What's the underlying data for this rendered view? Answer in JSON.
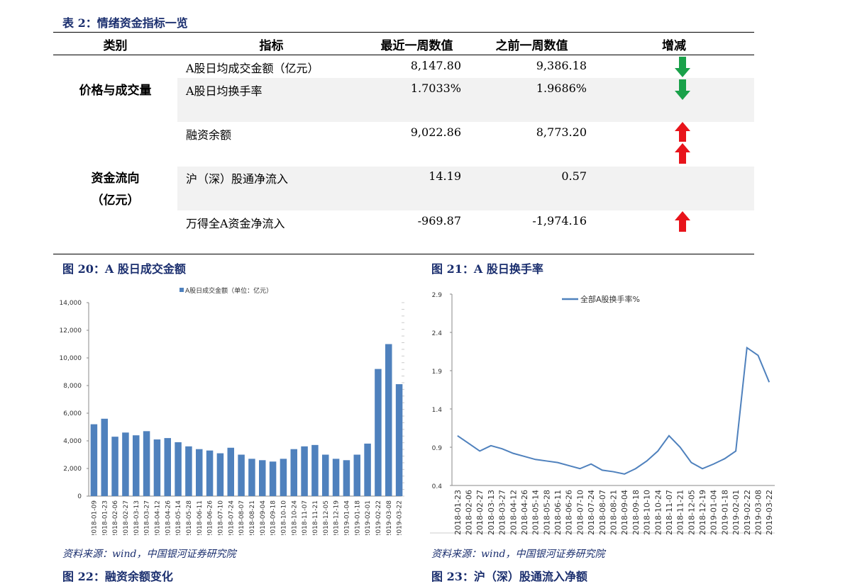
{
  "table": {
    "caption": "表 2：情绪资金指标一览",
    "headers": [
      "类别",
      "指标",
      "最近一周数值",
      "之前一周数值",
      "增减"
    ],
    "groups": [
      {
        "label": "价格与成交量",
        "sub": ""
      },
      {
        "label": "资金流向",
        "sub": "（亿元）"
      }
    ],
    "rows": [
      {
        "indicator": "A股日均成交金额（亿元）",
        "recent": "8,147.80",
        "previous": "9,386.18",
        "change": "down"
      },
      {
        "indicator": "A股日均换手率",
        "recent": "1.7033%",
        "previous": "1.9686%",
        "change": "down"
      },
      {
        "indicator": "融资余额",
        "recent": "9,022.86",
        "previous": "8,773.20",
        "change": "up"
      },
      {
        "indicator": "沪（深）股通净流入",
        "recent": "14.19",
        "previous": "0.57",
        "change": "up"
      },
      {
        "indicator": "万得全A资金净流入",
        "recent": "-969.87",
        "previous": "-1,974.16",
        "change": "up"
      }
    ],
    "colors": {
      "down": "#1aa14a",
      "up": "#e8141b"
    }
  },
  "figures": {
    "fig20_caption": "图 20：A 股日成交金额",
    "fig21_caption": "图 21：A 股日换手率",
    "fig22_caption": "图 22：融资余额变化",
    "fig23_caption": "图 23：沪（深）股通流入净额",
    "source_left": "资料来源：wind，中国银河证券研究院",
    "source_right": "资料来源：wind，中国银河证券研究院"
  },
  "chart_data": [
    {
      "type": "bar",
      "title": "",
      "legend": "A股日成交金额（单位：亿元）",
      "legend_position": "top",
      "ylim": [
        0,
        14000
      ],
      "yticks": [
        "0",
        "2,000",
        "4,000",
        "6,000",
        "8,000",
        "10,000",
        "12,000",
        "14,000"
      ],
      "color": "#4f81bd",
      "categories": [
        "2018-01-09",
        "2018-01-23",
        "2018-02-06",
        "2018-02-27",
        "2018-03-13",
        "2018-03-27",
        "2018-04-12",
        "2018-04-26",
        "2018-05-14",
        "2018-05-28",
        "2018-06-11",
        "2018-06-26",
        "2018-07-10",
        "2018-07-24",
        "2018-08-07",
        "2018-08-21",
        "2018-09-04",
        "2018-09-18",
        "2018-10-10",
        "2018-10-24",
        "2018-11-07",
        "2018-11-21",
        "2018-12-05",
        "2018-12-19",
        "2019-01-04",
        "2019-01-18",
        "2019-02-01",
        "2019-02-22",
        "2019-03-08",
        "2019-03-22"
      ],
      "values": [
        5200,
        5600,
        4300,
        4600,
        4400,
        4700,
        4100,
        4200,
        3900,
        3600,
        3400,
        3300,
        3100,
        3500,
        3000,
        2700,
        2600,
        2500,
        2700,
        3400,
        3600,
        3700,
        3000,
        2700,
        2600,
        3000,
        3800,
        9200,
        11000,
        8100
      ]
    },
    {
      "type": "line",
      "title": "",
      "legend": "全部A股换手率%",
      "legend_position": "top-right",
      "ylim": [
        0.4,
        2.9
      ],
      "yticks": [
        "0.4",
        "0.9",
        "1.4",
        "1.9",
        "2.4",
        "2.9"
      ],
      "color": "#4f81bd",
      "categories": [
        "2018-01-23",
        "2018-02-06",
        "2018-02-27",
        "2018-03-13",
        "2018-03-27",
        "2018-04-12",
        "2018-04-26",
        "2018-05-14",
        "2018-05-28",
        "2018-06-11",
        "2018-06-26",
        "2018-07-10",
        "2018-07-24",
        "2018-08-07",
        "2018-08-21",
        "2018-09-04",
        "2018-09-18",
        "2018-10-10",
        "2018-10-24",
        "2018-11-07",
        "2018-11-21",
        "2018-12-05",
        "2018-12-19",
        "2019-01-04",
        "2019-01-18",
        "2019-02-01",
        "2019-02-22",
        "2019-03-08",
        "2019-03-22"
      ],
      "values": [
        1.05,
        0.95,
        0.85,
        0.92,
        0.88,
        0.82,
        0.78,
        0.74,
        0.72,
        0.7,
        0.66,
        0.62,
        0.68,
        0.6,
        0.58,
        0.55,
        0.62,
        0.72,
        0.85,
        1.05,
        0.9,
        0.7,
        0.62,
        0.68,
        0.75,
        0.85,
        2.2,
        2.1,
        1.75
      ]
    }
  ]
}
